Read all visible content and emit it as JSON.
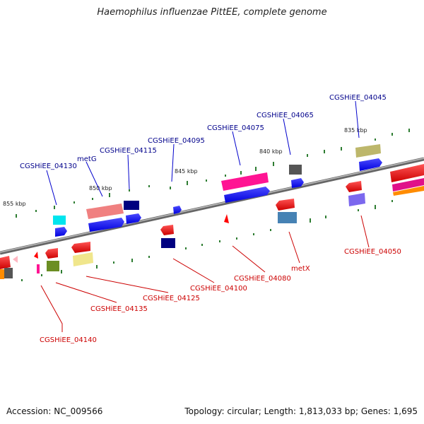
{
  "title": "Haemophilus influenzae PittEE, complete genome",
  "footer": {
    "accession": "Accession: NC_009566",
    "topology": "Topology: circular; Length: 1,813,033 bp; Genes: 1,695"
  },
  "colors": {
    "top_label": "#00008b",
    "bottom_label": "#cc0000",
    "backbone": "#888888",
    "tick": "#2e7d32"
  },
  "scale_ticks": [
    "855 kbp",
    "850 kbp",
    "845 kbp",
    "840 kbp",
    "835 kbp"
  ],
  "top_genes": [
    "CGSHiEE_04130",
    "metG",
    "CGSHiEE_04115",
    "CGSHiEE_04095",
    "CGSHiEE_04075",
    "CGSHiEE_04065",
    "CGSHiEE_04045"
  ],
  "bottom_genes": [
    "CGSHiEE_04140",
    "CGSHiEE_04135",
    "CGSHiEE_04125",
    "CGSHiEE_04100",
    "CGSHiEE_04080",
    "metX",
    "CGSHiEE_04050"
  ]
}
